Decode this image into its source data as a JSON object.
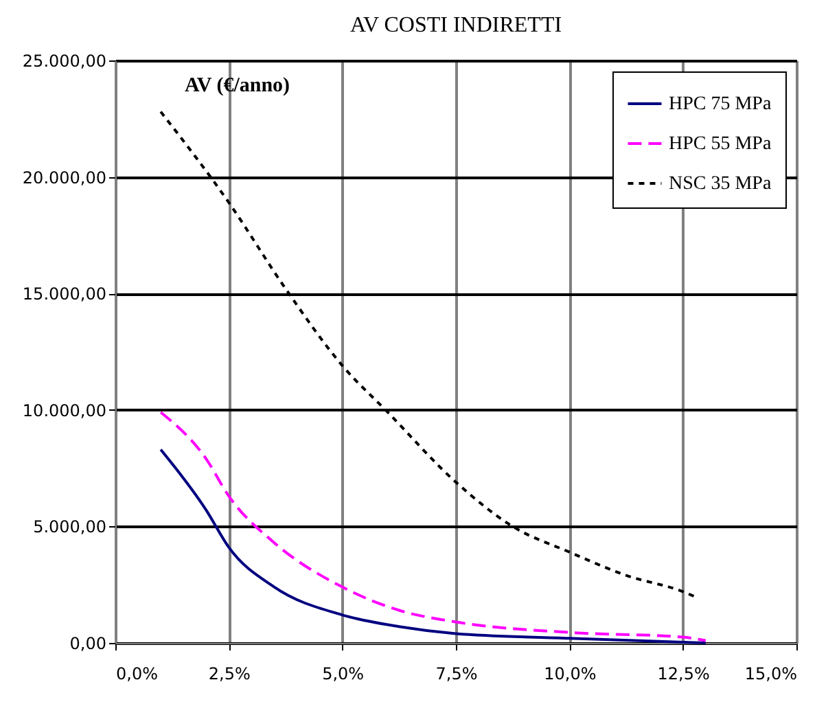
{
  "chart_data": {
    "type": "line",
    "title": "AV COSTI INDIRETTI",
    "ylabel": "AV (€/anno)",
    "xlim": [
      0,
      15
    ],
    "ylim": [
      0,
      25000
    ],
    "xticks": [
      {
        "value": 0,
        "label": "0,0%"
      },
      {
        "value": 2.5,
        "label": "2,5%"
      },
      {
        "value": 5,
        "label": "5,0%"
      },
      {
        "value": 7.5,
        "label": "7,5%"
      },
      {
        "value": 10,
        "label": "10,0%"
      },
      {
        "value": 12.5,
        "label": "12,5%"
      },
      {
        "value": 15,
        "label": "15,0%"
      }
    ],
    "yticks": [
      {
        "value": 0,
        "label": "0,00"
      },
      {
        "value": 5000,
        "label": "5.000,00"
      },
      {
        "value": 10000,
        "label": "10.000,00"
      },
      {
        "value": 15000,
        "label": "15.000,00"
      },
      {
        "value": 20000,
        "label": "20.000,00"
      },
      {
        "value": 25000,
        "label": "25.000,00"
      }
    ],
    "grid": true,
    "legend": "top right",
    "marker": "none",
    "series": [
      {
        "name": "HPC 75 MPa",
        "color": "#000080",
        "line_style": "solid",
        "x": [
          1,
          2,
          2.5,
          3.5,
          5,
          6.25,
          7.5,
          10,
          13
        ],
        "values": [
          8300,
          5700,
          4100,
          2400,
          1200,
          700,
          400,
          200,
          0
        ]
      },
      {
        "name": "HPC 55 MPa",
        "color": "#ff00ff",
        "line_style": "dashed",
        "x": [
          1,
          2,
          2.5,
          3.5,
          5,
          6.25,
          7.5,
          10,
          12.5,
          13
        ],
        "values": [
          9900,
          7900,
          6300,
          4300,
          2400,
          1400,
          900,
          450,
          250,
          100
        ]
      },
      {
        "name": "NSC 35 MPa",
        "color": "#000000",
        "line_style": "dotted",
        "x": [
          1,
          2.5,
          3.75,
          5,
          6,
          7.5,
          8.75,
          10,
          11.25,
          12.5,
          12.75
        ],
        "values": [
          22800,
          18900,
          15200,
          11900,
          9900,
          6900,
          5000,
          3900,
          2900,
          2200,
          2000
        ]
      }
    ]
  }
}
